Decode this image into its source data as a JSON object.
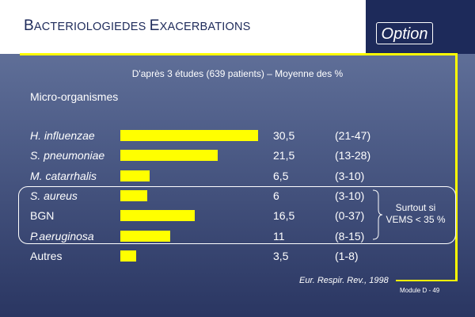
{
  "slide": {
    "title_parts": [
      {
        "cap": "B",
        "rest": "ACTERIOLOGIEDES "
      },
      {
        "cap": "E",
        "rest": "XACERBATIONS"
      }
    ],
    "option_label": "Option",
    "module_label": "Module D - 49",
    "source": "Eur. Respir. Rev., 1998",
    "note_line1": "Surtout si",
    "note_line2": "VEMS < 35 %"
  },
  "chart_data": {
    "type": "bar",
    "orientation": "horizontal",
    "title": "D'après 3 études (639 patients) – Moyenne des %",
    "column_header": "Micro-organismes",
    "categories": [
      "H. influenzae",
      "S. pneumoniae",
      "M. catarrhalis",
      "S. aureus",
      "BGN",
      "P.aeruginosa",
      "Autres"
    ],
    "italic": [
      true,
      true,
      true,
      true,
      false,
      true,
      false
    ],
    "values": [
      30.5,
      21.5,
      6.5,
      6,
      16.5,
      11,
      3.5
    ],
    "value_labels": [
      "30,5",
      "21,5",
      "6,5",
      "6",
      "16,5",
      "11",
      "3,5"
    ],
    "ranges": [
      "(21-47)",
      "(13-28)",
      "(3-10)",
      "(3-10)",
      "(0-37)",
      "(8-15)",
      "(1-8)"
    ],
    "xlim": [
      0,
      30.5
    ],
    "bar_color": "#ffff00",
    "grid": false
  }
}
